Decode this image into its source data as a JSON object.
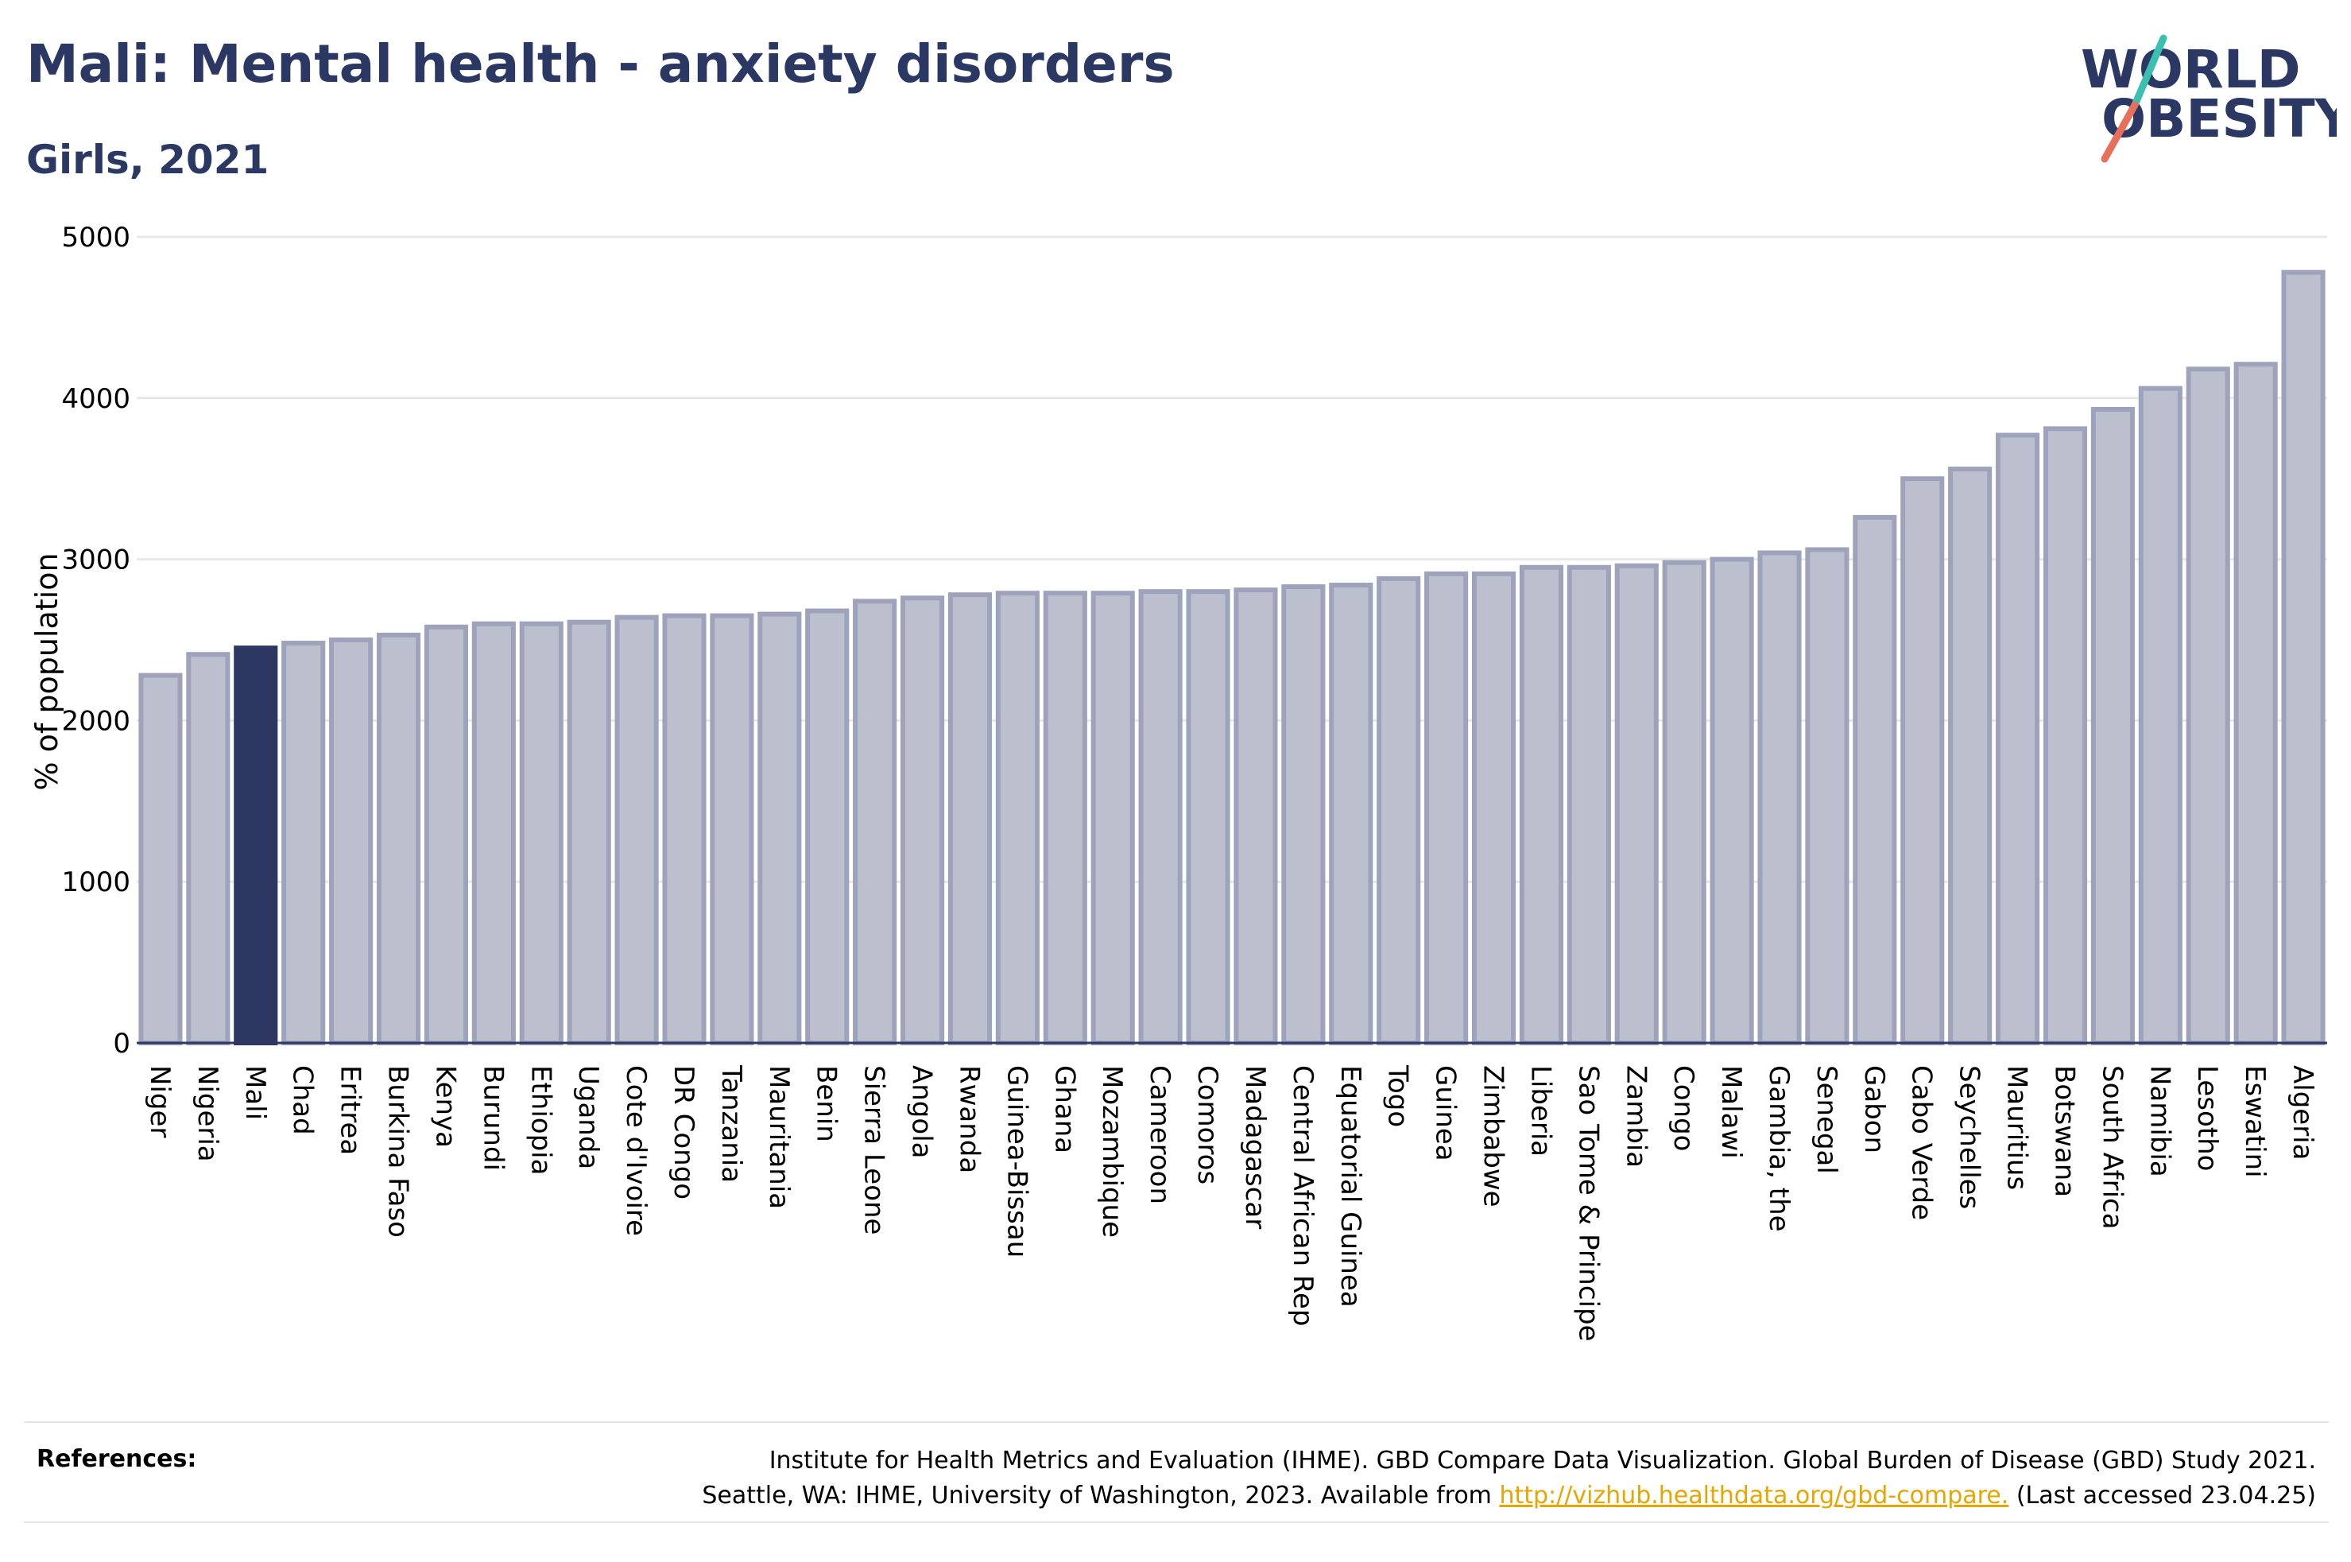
{
  "header": {
    "title": "Mali: Mental health - anxiety disorders",
    "subtitle": "Girls, 2021"
  },
  "logo": {
    "line1": "WORLD",
    "line2": "OBESITY"
  },
  "colors": {
    "highlight": "#2c3862",
    "bar_fill": "#bcc0ce",
    "bar_stroke": "#9ea3bb",
    "grid": "#e8e8e8",
    "logo_text": "#2c3864",
    "logo_slash_teal": "#3bbfb0",
    "logo_slash_coral": "#e8705a"
  },
  "chart_data": {
    "type": "bar",
    "ylabel": "% of population",
    "ylim": [
      0,
      5000
    ],
    "yticks": [
      0,
      1000,
      2000,
      3000,
      4000,
      5000
    ],
    "grid": true,
    "highlight": "Mali",
    "categories": [
      "Niger",
      "Nigeria",
      "Mali",
      "Chad",
      "Eritrea",
      "Burkina Faso",
      "Kenya",
      "Burundi",
      "Ethiopia",
      "Uganda",
      "Cote d'Ivoire",
      "DR Congo",
      "Tanzania",
      "Mauritania",
      "Benin",
      "Sierra Leone",
      "Angola",
      "Rwanda",
      "Guinea-Bissau",
      "Ghana",
      "Mozambique",
      "Cameroon",
      "Comoros",
      "Madagascar",
      "Central African Rep",
      "Equatorial Guinea",
      "Togo",
      "Guinea",
      "Zimbabwe",
      "Liberia",
      "Sao Tome & Principe",
      "Zambia",
      "Congo",
      "Malawi",
      "Gambia, the",
      "Senegal",
      "Gabon",
      "Cabo Verde",
      "Seychelles",
      "Mauritius",
      "Botswana",
      "South Africa",
      "Namibia",
      "Lesotho",
      "Eswatini",
      "Algeria"
    ],
    "values": [
      2280,
      2410,
      2450,
      2480,
      2500,
      2530,
      2580,
      2600,
      2600,
      2610,
      2640,
      2650,
      2650,
      2660,
      2680,
      2740,
      2760,
      2780,
      2790,
      2790,
      2790,
      2800,
      2800,
      2810,
      2830,
      2840,
      2880,
      2910,
      2910,
      2950,
      2950,
      2960,
      2980,
      3000,
      3040,
      3060,
      3260,
      3500,
      3560,
      3770,
      3810,
      3930,
      4060,
      4180,
      4210,
      4780
    ]
  },
  "references": {
    "label": "References:",
    "line1": "Institute for Health Metrics and Evaluation (IHME). GBD Compare Data Visualization. Global Burden of Disease (GBD) Study 2021.",
    "line2_prefix": "Seattle, WA: IHME, University of Washington, 2023. Available from ",
    "link": "http://vizhub.healthdata.org/gbd-compare.",
    "line2_suffix": " (Last accessed 23.04.25)"
  }
}
